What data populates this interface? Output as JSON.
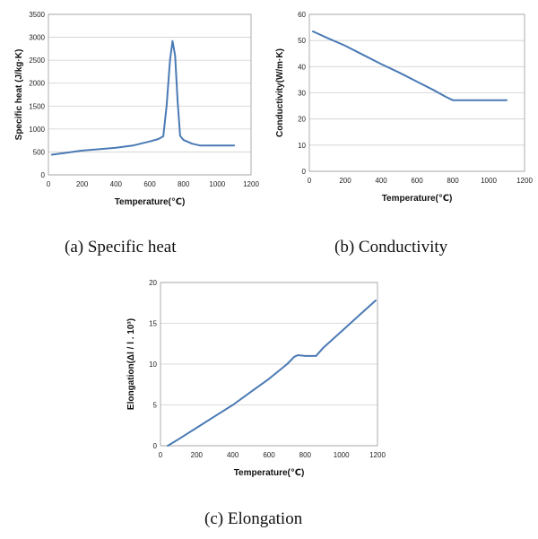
{
  "series_color": "#4a7ab5",
  "chart_data": [
    {
      "type": "line",
      "caption": "(a)  Specific  heat",
      "xlabel": "Temperature(℃)",
      "ylabel": "Specific heat (J/kg·K)",
      "xlim": [
        0,
        1200
      ],
      "ylim": [
        0,
        3500
      ],
      "xticks": [
        0,
        200,
        400,
        600,
        800,
        1000,
        1200
      ],
      "yticks": [
        0,
        500,
        1000,
        1500,
        2000,
        2500,
        3000,
        3500
      ],
      "grid": "horizontal",
      "series": [
        {
          "x": [
            20,
            100,
            200,
            300,
            400,
            500,
            600,
            650,
            680,
            700,
            720,
            735,
            750,
            765,
            780,
            800,
            850,
            900,
            1000,
            1100
          ],
          "values": [
            440,
            480,
            530,
            560,
            590,
            640,
            730,
            780,
            840,
            1500,
            2500,
            2920,
            2600,
            1600,
            850,
            760,
            680,
            640,
            640,
            640
          ]
        }
      ]
    },
    {
      "type": "line",
      "caption": "(b)  Conductivity",
      "xlabel": "Temperature(℃)",
      "ylabel": "Conductivity(W/m·K)",
      "xlim": [
        0,
        1200
      ],
      "ylim": [
        0,
        60
      ],
      "xticks": [
        0,
        200,
        400,
        600,
        800,
        1000,
        1200
      ],
      "yticks": [
        0,
        10,
        20,
        30,
        40,
        50,
        60
      ],
      "grid": "horizontal",
      "series": [
        {
          "x": [
            20,
            100,
            200,
            300,
            400,
            500,
            600,
            700,
            760,
            800,
            850,
            1000,
            1100
          ],
          "values": [
            53.5,
            51,
            48,
            44.5,
            41,
            37.8,
            34.3,
            30.8,
            28.5,
            27.2,
            27.2,
            27.2,
            27.2
          ]
        }
      ]
    },
    {
      "type": "line",
      "caption": "(c)  Elongation",
      "xlabel": "Temperature(℃)",
      "ylabel": "Elongation(Δl / l . 10³)",
      "xlim": [
        0,
        1200
      ],
      "ylim": [
        0,
        20
      ],
      "xticks": [
        0,
        200,
        400,
        600,
        800,
        1000,
        1200
      ],
      "yticks": [
        0,
        5,
        10,
        15,
        20
      ],
      "grid": "horizontal",
      "series": [
        {
          "x": [
            40,
            100,
            200,
            300,
            400,
            500,
            600,
            700,
            740,
            760,
            800,
            860,
            900,
            1000,
            1100,
            1190
          ],
          "values": [
            0,
            0.8,
            2.2,
            3.6,
            5.0,
            6.6,
            8.2,
            10.0,
            10.9,
            11.1,
            11.0,
            11.0,
            12.0,
            14.0,
            16.0,
            17.8
          ]
        }
      ]
    }
  ]
}
